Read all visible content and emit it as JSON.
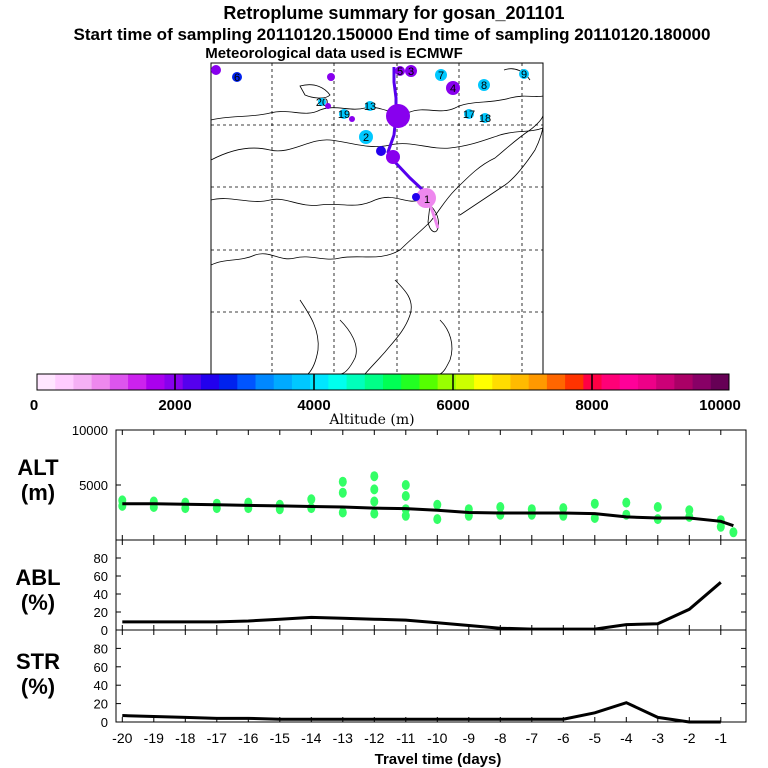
{
  "header": {
    "title": "Retroplume summary for gosan_201101",
    "sampling_line": "Start time of sampling 20110120.150000     End time of sampling 20110120.180000",
    "met_line": "Meteorological data used is ECMWF"
  },
  "colorbar": {
    "ticks": [
      "0",
      "2000",
      "4000",
      "6000",
      "8000",
      "10000"
    ],
    "label": "Altitude (m)",
    "colors": [
      "#ffe6ff",
      "#ffccff",
      "#f5b0f5",
      "#ee88ee",
      "#dd55ee",
      "#cc22ee",
      "#aa00ee",
      "#8800ee",
      "#5500ee",
      "#2200ee",
      "#0022ee",
      "#0055ff",
      "#0088ff",
      "#00aaff",
      "#00c8ff",
      "#00e6ff",
      "#00ffee",
      "#00ffbb",
      "#00ff88",
      "#00ff55",
      "#22ff22",
      "#55ff00",
      "#99ff00",
      "#ccff00",
      "#ffff00",
      "#ffdd00",
      "#ffbb00",
      "#ff9900",
      "#ff6600",
      "#ff3300",
      "#ff0044",
      "#ff0077",
      "#ff0099",
      "#ee0088",
      "#cc0077",
      "#aa0066",
      "#880066",
      "#660055"
    ]
  },
  "map": {
    "markers": [
      {
        "label": "1",
        "color": "#ee88ee"
      },
      {
        "label": "2",
        "color": "#00c8ff"
      },
      {
        "label": "3",
        "color": "#8800ee"
      },
      {
        "label": "4",
        "color": "#8800ee"
      },
      {
        "label": "5",
        "color": "#8800ee"
      },
      {
        "label": "6",
        "color": "#0022ee"
      },
      {
        "label": "7",
        "color": "#00c8ff"
      },
      {
        "label": "8",
        "color": "#00c8ff"
      },
      {
        "label": "9",
        "color": "#00c8ff"
      },
      {
        "label": "13",
        "color": "#00c8ff"
      },
      {
        "label": "17",
        "color": "#00c8ff"
      },
      {
        "label": "18",
        "color": "#00c8ff"
      },
      {
        "label": "19",
        "color": "#00c8ff"
      },
      {
        "label": "20",
        "color": "#00c8ff"
      }
    ]
  },
  "panels": {
    "alt": {
      "label_line1": "ALT",
      "label_line2": "(m)",
      "ticks": [
        "10000",
        "5000"
      ]
    },
    "abl": {
      "label_line1": "ABL",
      "label_line2": "(%)",
      "ticks": [
        "80",
        "60",
        "40",
        "20",
        "0"
      ]
    },
    "str": {
      "label_line1": "STR",
      "label_line2": "(%)",
      "ticks": [
        "80",
        "60",
        "40",
        "20",
        "0"
      ]
    }
  },
  "chart_data": [
    {
      "type": "line",
      "title": "ALT (m)",
      "xlabel": "Travel time (days)",
      "ylabel": "Altitude (m)",
      "x": [
        -20,
        -19,
        -18,
        -17,
        -16,
        -15,
        -14,
        -13,
        -12,
        -11,
        -10,
        -9,
        -8,
        -7,
        -6,
        -5,
        -4,
        -3,
        -2,
        -1,
        -0.6
      ],
      "values": [
        3300,
        3300,
        3250,
        3200,
        3150,
        3100,
        3050,
        3000,
        2900,
        2850,
        2700,
        2500,
        2450,
        2450,
        2450,
        2400,
        2100,
        2000,
        2000,
        1700,
        1300
      ],
      "ylim": [
        0,
        10000
      ],
      "scatter_points_x": [
        -20,
        -20,
        -19,
        -19,
        -18,
        -18,
        -17,
        -17,
        -16,
        -16,
        -15,
        -15,
        -14,
        -14,
        -13,
        -13,
        -13,
        -12,
        -12,
        -12,
        -12,
        -11,
        -11,
        -11,
        -11,
        -10,
        -10,
        -9,
        -9,
        -8,
        -8,
        -7,
        -7,
        -6,
        -6,
        -5,
        -5,
        -4,
        -4,
        -3,
        -3,
        -2,
        -2,
        -1,
        -1,
        -0.6
      ],
      "scatter_points_y": [
        3600,
        3100,
        3500,
        3000,
        3400,
        2900,
        3300,
        2900,
        3400,
        2900,
        3200,
        2800,
        3700,
        2900,
        5300,
        4300,
        2500,
        5800,
        4600,
        3500,
        2400,
        5000,
        4000,
        2800,
        2200,
        3200,
        1900,
        2800,
        2200,
        3000,
        2300,
        2800,
        2300,
        2900,
        2200,
        3300,
        2000,
        3400,
        2300,
        3000,
        1900,
        2700,
        2100,
        1800,
        1200,
        700
      ]
    },
    {
      "type": "line",
      "title": "ABL (%)",
      "xlabel": "Travel time (days)",
      "ylabel": "ABL (%)",
      "x": [
        -20,
        -19,
        -18,
        -17,
        -16,
        -15,
        -14,
        -13,
        -12,
        -11,
        -10,
        -9,
        -8,
        -7,
        -6,
        -5,
        -4,
        -3,
        -2,
        -1
      ],
      "values": [
        9,
        9,
        9,
        9,
        10,
        12,
        14,
        13,
        12,
        11,
        8,
        5,
        2,
        1,
        1,
        1,
        6,
        7,
        23,
        53
      ],
      "ylim": [
        0,
        100
      ]
    },
    {
      "type": "line",
      "title": "STR (%)",
      "xlabel": "Travel time (days)",
      "ylabel": "STR (%)",
      "x": [
        -20,
        -19,
        -18,
        -17,
        -16,
        -15,
        -14,
        -13,
        -12,
        -11,
        -10,
        -9,
        -8,
        -7,
        -6,
        -5,
        -4,
        -3,
        -2,
        -1
      ],
      "values": [
        7,
        6,
        5,
        4,
        4,
        3,
        3,
        3,
        3,
        3,
        3,
        3,
        3,
        3,
        3,
        10,
        21,
        5,
        0,
        0
      ],
      "ylim": [
        0,
        100
      ]
    }
  ],
  "x_axis": {
    "ticks": [
      "-20",
      "-19",
      "-18",
      "-17",
      "-16",
      "-15",
      "-14",
      "-13",
      "-12",
      "-11",
      "-10",
      "-9",
      "-8",
      "-7",
      "-6",
      "-5",
      "-4",
      "-3",
      "-2",
      "-1"
    ],
    "label": "Travel time (days)"
  }
}
